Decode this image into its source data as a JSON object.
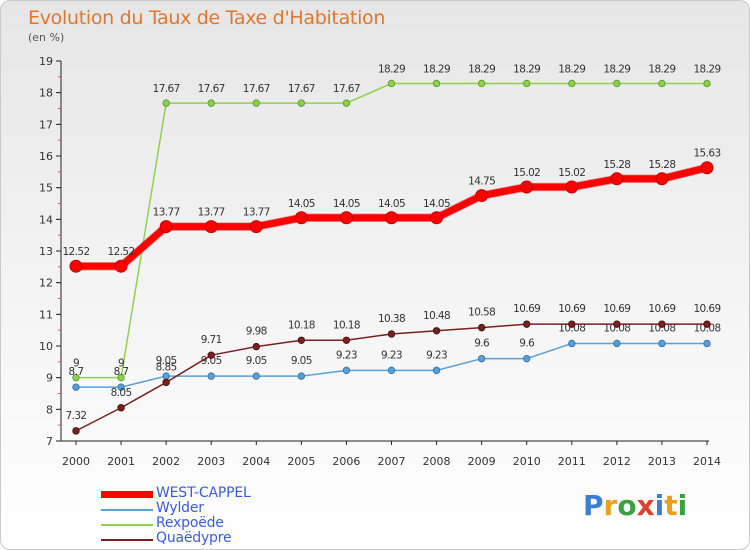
{
  "title": "Evolution du Taux de Taxe d'Habitation",
  "subtitle": "(en %)",
  "logo_text": "Proxiti",
  "chart_data": {
    "type": "line",
    "title": "Evolution du Taux de Taxe d'Habitation",
    "subtitle": "(en %)",
    "xlabel": "",
    "ylabel": "",
    "x": [
      "2000",
      "2001",
      "2002",
      "2003",
      "2004",
      "2005",
      "2006",
      "2007",
      "2008",
      "2009",
      "2010",
      "2011",
      "2012",
      "2013",
      "2014"
    ],
    "ylim": [
      7,
      19
    ],
    "yticks": [
      "7",
      "8",
      "9",
      "10",
      "11",
      "12",
      "13",
      "14",
      "15",
      "16",
      "17",
      "18",
      "19"
    ],
    "grid": false,
    "legend_position": "bottom-left",
    "series": [
      {
        "name": "WEST-CAPPEL",
        "color": "#ff0000",
        "values": [
          12.52,
          12.52,
          13.77,
          13.77,
          13.77,
          14.05,
          14.05,
          14.05,
          14.05,
          14.75,
          15.02,
          15.02,
          15.28,
          15.28,
          15.63
        ],
        "labels": [
          "12.52",
          "12.52",
          "13.77",
          "13.77",
          "13.77",
          "14.05",
          "14.05",
          "14.05",
          "14.05",
          "14.75",
          "15.02",
          "15.02",
          "15.28",
          "15.28",
          "15.63"
        ]
      },
      {
        "name": "Wylder",
        "color": "#5aa0d8",
        "values": [
          8.7,
          8.7,
          9.05,
          9.05,
          9.05,
          9.05,
          9.23,
          9.23,
          9.23,
          9.6,
          9.6,
          10.08,
          10.08,
          10.08,
          10.08
        ],
        "labels": [
          "8.7",
          "8.7",
          "9.05",
          "9.05",
          "9.05",
          "9.05",
          "9.23",
          "9.23",
          "9.23",
          "9.6",
          "9.6",
          "10.08",
          "10.08",
          "10.08",
          "10.08"
        ]
      },
      {
        "name": "Rexpoëde",
        "color": "#8fd14f",
        "values": [
          9,
          9,
          17.67,
          17.67,
          17.67,
          17.67,
          17.67,
          18.29,
          18.29,
          18.29,
          18.29,
          18.29,
          18.29,
          18.29,
          18.29
        ],
        "labels": [
          "9",
          "9",
          "17.67",
          "17.67",
          "17.67",
          "17.67",
          "17.67",
          "18.29",
          "18.29",
          "18.29",
          "18.29",
          "18.29",
          "18.29",
          "18.29",
          "18.29"
        ]
      },
      {
        "name": "Quaëdypre",
        "color": "#7a2020",
        "values": [
          7.32,
          8.05,
          8.85,
          9.71,
          9.98,
          10.18,
          10.18,
          10.38,
          10.48,
          10.58,
          10.69,
          10.69,
          10.69,
          10.69,
          10.69
        ],
        "labels": [
          "7.32",
          "8.05",
          "8.85",
          "9.71",
          "9.98",
          "10.18",
          "10.18",
          "10.38",
          "10.48",
          "10.58",
          "10.69",
          "10.69",
          "10.69",
          "10.69",
          "10.69"
        ]
      }
    ]
  },
  "legend": [
    {
      "label": "WEST-CAPPEL",
      "color": "#ff0000"
    },
    {
      "label": "Wylder",
      "color": "#5aa0d8"
    },
    {
      "label": "Rexpoëde",
      "color": "#8fd14f"
    },
    {
      "label": "Quaëdypre",
      "color": "#7a2020"
    }
  ]
}
